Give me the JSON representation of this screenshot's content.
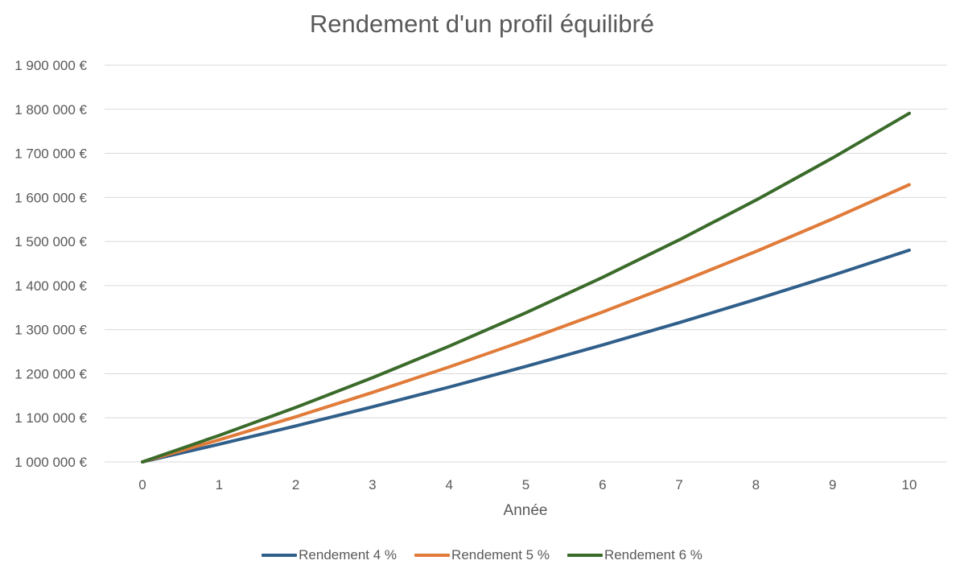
{
  "chart_data": {
    "type": "line",
    "title": "Rendement d'un profil équilibré",
    "xlabel": "Année",
    "ylabel": "",
    "x": [
      0,
      1,
      2,
      3,
      4,
      5,
      6,
      7,
      8,
      9,
      10
    ],
    "x_tick_labels": [
      "0",
      "1",
      "2",
      "3",
      "4",
      "5",
      "6",
      "7",
      "8",
      "9",
      "10"
    ],
    "ylim": [
      1000000,
      1900000
    ],
    "y_tick_labels": [
      "1 000 000 €",
      "1 100 000 €",
      "1 200 000 €",
      "1 300 000 €",
      "1 400 000 €",
      "1 500 000 €",
      "1 600 000 €",
      "1 700 000 €",
      "1 800 000 €",
      "1 900 000 €"
    ],
    "grid": true,
    "legend_position": "bottom",
    "series": [
      {
        "name": "Rendement 4 %",
        "color": "#2f5f8a",
        "values": [
          1000000,
          1040000,
          1081600,
          1124864,
          1169859,
          1216653,
          1265319,
          1315932,
          1368569,
          1423312,
          1480244
        ]
      },
      {
        "name": "Rendement 5 %",
        "color": "#e07b39",
        "values": [
          1000000,
          1050000,
          1102500,
          1157625,
          1215506,
          1276282,
          1340096,
          1407100,
          1477455,
          1551328,
          1628895
        ]
      },
      {
        "name": "Rendement 6 %",
        "color": "#3a6b2a",
        "values": [
          1000000,
          1060000,
          1123600,
          1191016,
          1262477,
          1338226,
          1418519,
          1503630,
          1593848,
          1689479,
          1790848
        ]
      }
    ]
  }
}
